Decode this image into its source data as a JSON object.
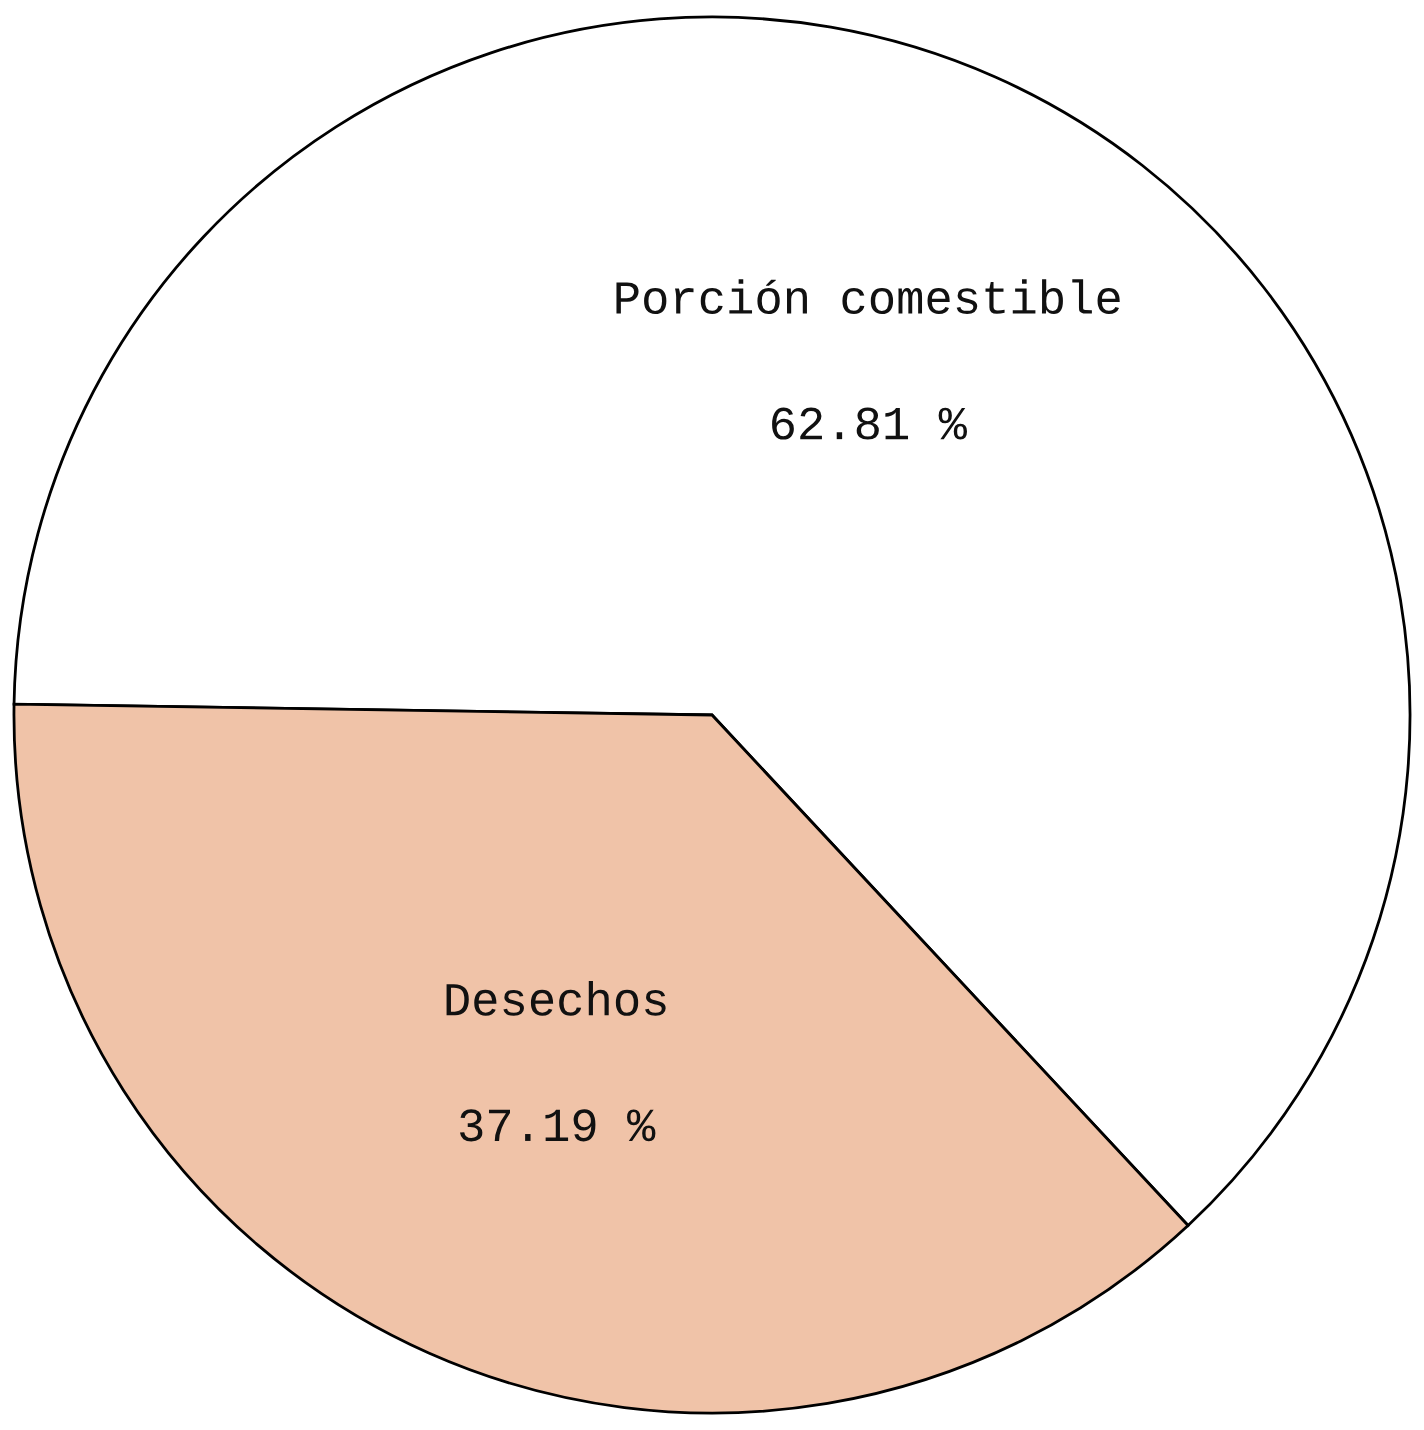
{
  "chart_data": {
    "type": "pie",
    "categories": [
      "Porción comestible",
      "Desechos"
    ],
    "values": [
      62.81,
      37.19
    ],
    "colors": [
      "#ffffff",
      "#f0c3a8"
    ],
    "value_labels": [
      "62.81 %",
      "37.19 %"
    ]
  }
}
